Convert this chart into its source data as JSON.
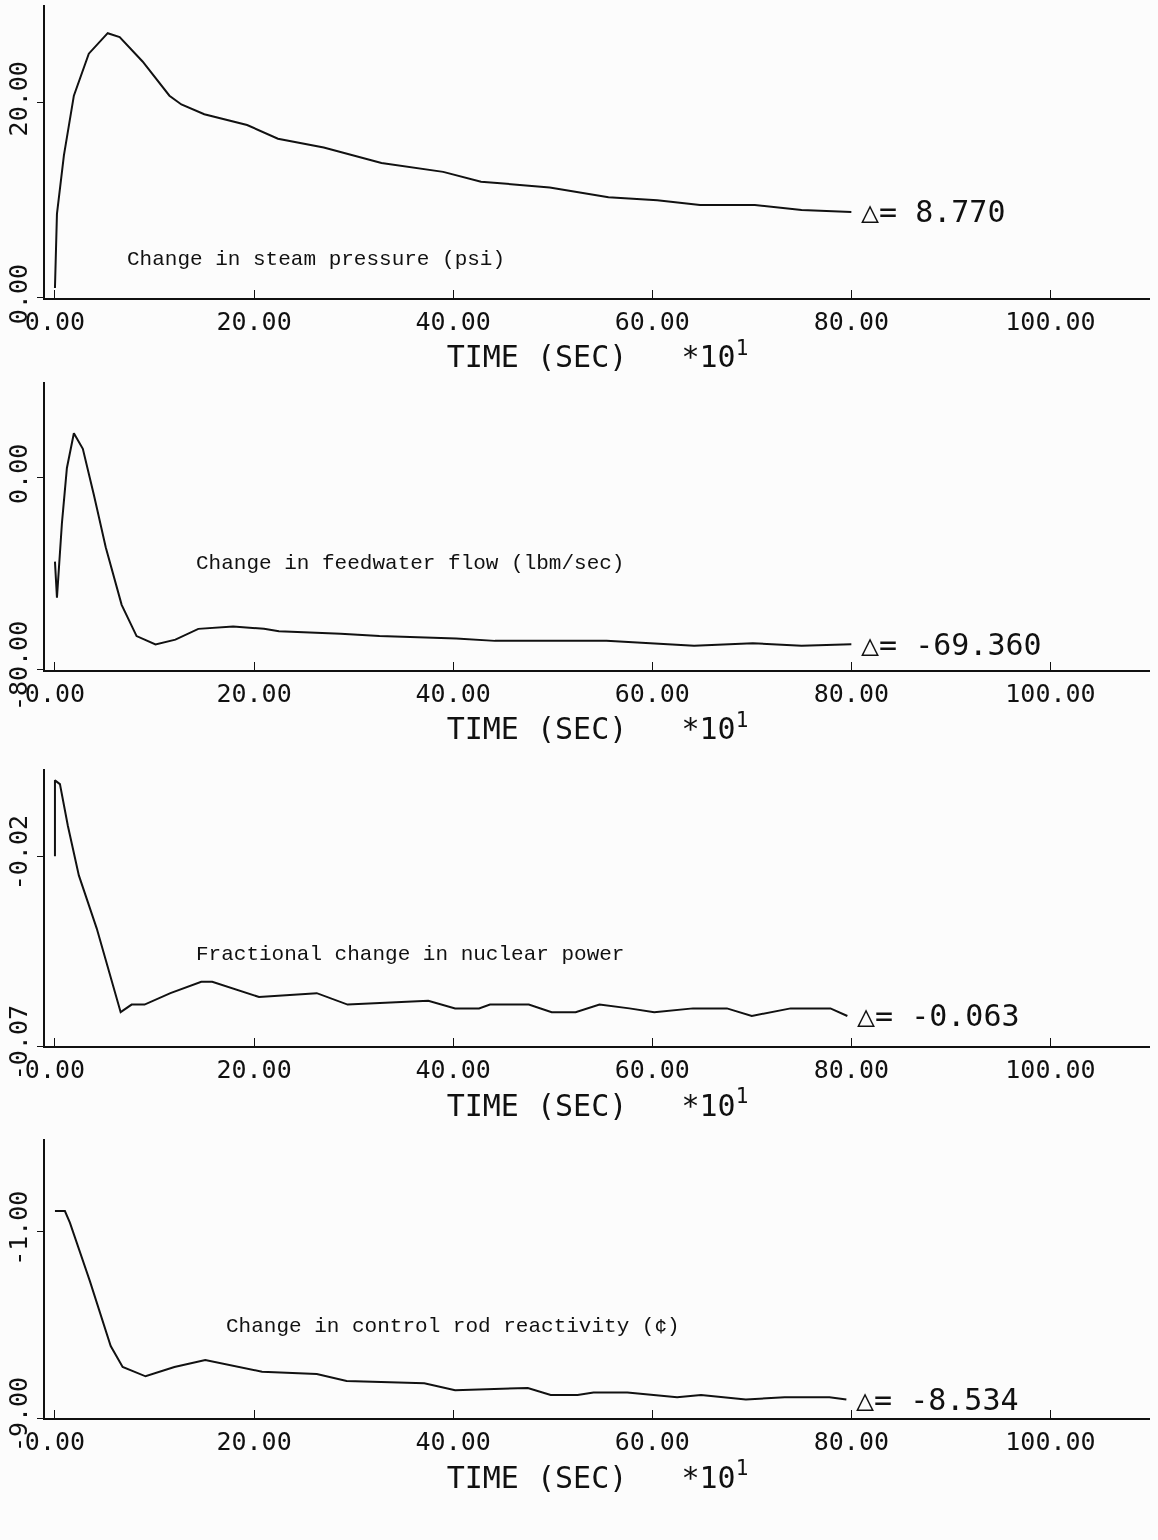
{
  "chart_data": [
    {
      "type": "line",
      "xlabel": "TIME (SEC)   *10$^{1}$",
      "xlim": [
        -1,
        110
      ],
      "ylim": [
        0,
        30
      ],
      "line_style": "solid",
      "xticks": [
        {
          "value": 0,
          "label": "0.00"
        },
        {
          "value": 20,
          "label": "20.00"
        },
        {
          "value": 40,
          "label": "40.00"
        },
        {
          "value": 60,
          "label": "60.00"
        },
        {
          "value": 80,
          "label": "80.00"
        },
        {
          "value": 100,
          "label": "100.00"
        }
      ],
      "yticks": [
        {
          "value": 0,
          "label": "0.00"
        },
        {
          "value": 20,
          "label": "20.00"
        }
      ],
      "annotations": [
        "Change in steam pressure (psi)",
        "△= 8.770"
      ],
      "series": [
        {
          "color": "#111111",
          "x": [
            0,
            0.2,
            0.9,
            1.9,
            3.4,
            5.3,
            6.5,
            8.8,
            11.5,
            12.7,
            15.0,
            19.3,
            22.4,
            27.0,
            32.8,
            39.0,
            42.8,
            49.7,
            55.6,
            60.5,
            64.8,
            70.3,
            75.0,
            80.0
          ],
          "values": [
            1,
            8.6,
            14.6,
            20.7,
            25.0,
            27.1,
            26.7,
            24.2,
            20.7,
            19.8,
            18.8,
            17.7,
            16.3,
            15.4,
            13.8,
            12.9,
            11.9,
            11.3,
            10.3,
            10.0,
            9.5,
            9.5,
            9.0,
            8.8
          ]
        }
      ]
    },
    {
      "type": "line",
      "xlabel": "TIME (SEC)   *10$^{1}$",
      "xlim": [
        -1,
        110
      ],
      "ylim": [
        -80,
        40
      ],
      "line_style": "solid",
      "xticks": [
        {
          "value": 0,
          "label": "0.00"
        },
        {
          "value": 20,
          "label": "20.00"
        },
        {
          "value": 40,
          "label": "40.00"
        },
        {
          "value": 60,
          "label": "60.00"
        },
        {
          "value": 80,
          "label": "80.00"
        },
        {
          "value": 100,
          "label": "100.00"
        }
      ],
      "yticks": [
        {
          "value": -80,
          "label": "-80.00"
        },
        {
          "value": 0,
          "label": "0.00"
        }
      ],
      "annotations": [
        "Change in feedwater flow (lbm/sec)",
        "△= -69.360"
      ],
      "series": [
        {
          "color": "#111111",
          "x": [
            0,
            0.2,
            0.7,
            1.2,
            1.9,
            2.8,
            3.9,
            5.1,
            6.7,
            8.2,
            10.1,
            12.1,
            14.4,
            17.9,
            21.0,
            22.5,
            28.7,
            32.6,
            40.3,
            44.2,
            49.5,
            55.4,
            64.2,
            70.1,
            75.0,
            80.0
          ],
          "values": [
            -35,
            -50,
            -19,
            4,
            18.5,
            12,
            -7,
            -29,
            -53,
            -66,
            -69.5,
            -67.5,
            -63,
            -62,
            -63,
            -64,
            -65,
            -66,
            -67,
            -68,
            -68,
            -68,
            -70,
            -69,
            -70,
            -69.4
          ]
        }
      ]
    },
    {
      "type": "line",
      "xlabel": "TIME (SEC)   *10$^{1}$",
      "xlim": [
        -1,
        110
      ],
      "ylim": [
        -0.07,
        0.003
      ],
      "line_style": "solid",
      "xticks": [
        {
          "value": 0,
          "label": "0.00"
        },
        {
          "value": 20,
          "label": "20.00"
        },
        {
          "value": 40,
          "label": "40.00"
        },
        {
          "value": 60,
          "label": "60.00"
        },
        {
          "value": 80,
          "label": "80.00"
        },
        {
          "value": 100,
          "label": "100.00"
        }
      ],
      "yticks": [
        {
          "value": -0.07,
          "label": "-0.07"
        },
        {
          "value": -0.02,
          "label": "-0.02"
        }
      ],
      "annotations": [
        "Fractional change in nuclear power",
        "△= -0.063"
      ],
      "series": [
        {
          "color": "#111111",
          "x": [
            0,
            0,
            0.5,
            1.3,
            2.4,
            4.2,
            6.6,
            7.7,
            9.0,
            11.6,
            14.7,
            15.8,
            20.5,
            26.3,
            29.4,
            37.5,
            40.2,
            42.6,
            43.7,
            47.6,
            49.9,
            52.3,
            54.7,
            57.7,
            60.2,
            64.1,
            67.5,
            70.0,
            73.9,
            77.9,
            79.6
          ],
          "values": [
            -0.02,
            0.0,
            -0.001,
            -0.012,
            -0.025,
            -0.039,
            -0.061,
            -0.059,
            -0.059,
            -0.056,
            -0.053,
            -0.053,
            -0.057,
            -0.056,
            -0.059,
            -0.058,
            -0.06,
            -0.06,
            -0.059,
            -0.059,
            -0.061,
            -0.061,
            -0.059,
            -0.06,
            -0.061,
            -0.06,
            -0.06,
            -0.062,
            -0.06,
            -0.06,
            -0.062
          ]
        }
      ]
    },
    {
      "type": "line",
      "xlabel": "TIME (SEC)   *10$^{1}$",
      "xlim": [
        -1,
        110
      ],
      "ylim": [
        -9,
        3
      ],
      "line_style": "solid",
      "xticks": [
        {
          "value": 0,
          "label": "0.00"
        },
        {
          "value": 20,
          "label": "20.00"
        },
        {
          "value": 40,
          "label": "40.00"
        },
        {
          "value": 60,
          "label": "60.00"
        },
        {
          "value": 80,
          "label": "80.00"
        },
        {
          "value": 100,
          "label": "100.00"
        }
      ],
      "yticks": [
        {
          "value": -9,
          "label": "-9.00"
        },
        {
          "value": -1,
          "label": "-1.00"
        }
      ],
      "annotations": [
        "Change in control rod reactivity (¢)",
        "△= -8.534"
      ],
      "series": [
        {
          "color": "#111111",
          "x": [
            0,
            1.0,
            1.5,
            3.5,
            5.6,
            6.8,
            9.1,
            12.0,
            15.1,
            20.8,
            26.3,
            29.3,
            37.1,
            40.2,
            47.5,
            49.8,
            52.5,
            54.1,
            57.5,
            62.5,
            64.9,
            69.4,
            73.3,
            77.8,
            79.5
          ],
          "values": [
            -0.1,
            -0.1,
            -0.6,
            -3.1,
            -5.9,
            -6.8,
            -7.2,
            -6.8,
            -6.5,
            -7.0,
            -7.1,
            -7.4,
            -7.5,
            -7.8,
            -7.7,
            -8.0,
            -8.0,
            -7.9,
            -7.9,
            -8.1,
            -8.0,
            -8.2,
            -8.1,
            -8.1,
            -8.2
          ]
        }
      ]
    }
  ]
}
